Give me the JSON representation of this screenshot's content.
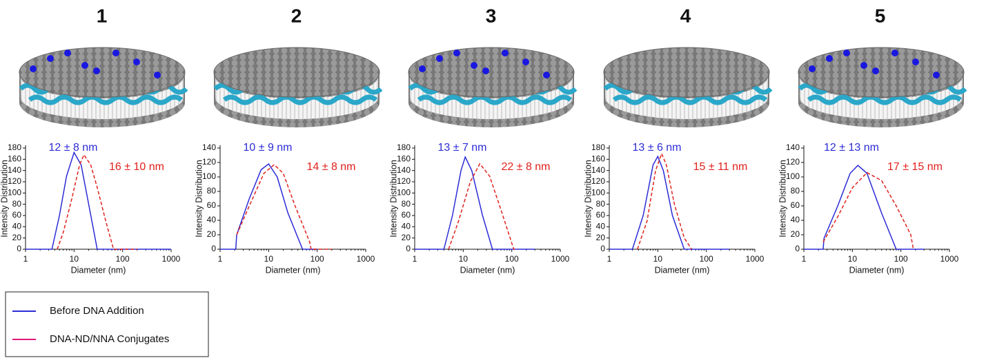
{
  "chart_data": [
    {
      "type": "line",
      "title": "1",
      "xlabel": "Diameter (nm)",
      "ylabel": "Intensity Distribution",
      "xscale": "log",
      "xlim": [
        1,
        1000
      ],
      "xticks": [
        1,
        10,
        100,
        1000
      ],
      "ylim": [
        0,
        180
      ],
      "yticks": [
        0,
        20,
        40,
        60,
        80,
        100,
        120,
        140,
        160,
        180
      ],
      "series": [
        {
          "name": "12 ± 8 nm",
          "color": "#2b2bd6",
          "dashed": false,
          "x": [
            1,
            3.5,
            5,
            7,
            10,
            14,
            20,
            30,
            1000
          ],
          "values": [
            0,
            0,
            60,
            130,
            172,
            150,
            80,
            0,
            0
          ]
        },
        {
          "name": "16 ± 10 nm",
          "color": "#e0201b",
          "dashed": true,
          "x": [
            4.5,
            6,
            9,
            13,
            16,
            22,
            30,
            45,
            65,
            200
          ],
          "values": [
            0,
            30,
            90,
            150,
            168,
            150,
            110,
            50,
            0,
            0
          ]
        }
      ]
    },
    {
      "type": "line",
      "title": "2",
      "xlabel": "Diameter (nm)",
      "ylabel": "Intensity Distribution",
      "xscale": "log",
      "xlim": [
        1,
        1000
      ],
      "xticks": [
        1,
        10,
        100,
        1000
      ],
      "ylim": [
        0,
        140
      ],
      "yticks": [
        0,
        20,
        40,
        60,
        80,
        100,
        120,
        140
      ],
      "series": [
        {
          "name": "10 ± 9 nm",
          "color": "#2b2bd6",
          "dashed": false,
          "x": [
            1,
            2.1,
            2.2,
            4,
            7,
            10,
            15,
            25,
            50,
            100
          ],
          "values": [
            0,
            0,
            20,
            70,
            110,
            118,
            100,
            50,
            0,
            0
          ]
        },
        {
          "name": "14 ± 8 nm",
          "color": "#e0201b",
          "dashed": true,
          "x": [
            2.2,
            4,
            8,
            13,
            20,
            35,
            70,
            75,
            200
          ],
          "values": [
            20,
            60,
            105,
            117,
            105,
            60,
            10,
            0,
            0
          ]
        }
      ]
    },
    {
      "type": "line",
      "title": "3",
      "xlabel": "Diameter (nm)",
      "ylabel": "Intensity Distribution",
      "xscale": "log",
      "xlim": [
        1,
        1000
      ],
      "xticks": [
        1,
        10,
        100,
        1000
      ],
      "ylim": [
        0,
        180
      ],
      "yticks": [
        0,
        20,
        40,
        60,
        80,
        100,
        120,
        140,
        160,
        180
      ],
      "series": [
        {
          "name": "13 ± 7 nm",
          "color": "#2b2bd6",
          "dashed": false,
          "x": [
            1,
            4,
            6,
            9,
            11,
            15,
            25,
            40,
            300
          ],
          "values": [
            0,
            0,
            60,
            140,
            164,
            140,
            60,
            0,
            0
          ]
        },
        {
          "name": "22 ± 8 nm",
          "color": "#e0201b",
          "dashed": true,
          "x": [
            5,
            8,
            14,
            22,
            35,
            60,
            110,
            120
          ],
          "values": [
            0,
            50,
            120,
            152,
            130,
            70,
            0,
            0
          ]
        }
      ]
    },
    {
      "type": "line",
      "title": "4",
      "xlabel": "Diameter (nm)",
      "ylabel": "Intensity Distribution",
      "xscale": "log",
      "xlim": [
        1,
        1000
      ],
      "xticks": [
        1,
        10,
        100,
        1000
      ],
      "ylim": [
        0,
        180
      ],
      "yticks": [
        0,
        20,
        40,
        60,
        80,
        100,
        120,
        140,
        160,
        180
      ],
      "series": [
        {
          "name": "13 ± 6 nm",
          "color": "#2b2bd6",
          "dashed": false,
          "x": [
            1,
            3,
            5,
            8,
            10,
            13,
            20,
            35,
            300
          ],
          "values": [
            0,
            0,
            60,
            150,
            165,
            140,
            60,
            0,
            0
          ]
        },
        {
          "name": "15 ± 11 nm",
          "color": "#e0201b",
          "dashed": true,
          "x": [
            3.8,
            6,
            9,
            12,
            15,
            22,
            35,
            50
          ],
          "values": [
            0,
            50,
            140,
            170,
            150,
            80,
            20,
            0
          ]
        }
      ]
    },
    {
      "type": "line",
      "title": "5",
      "xlabel": "Diameter (nm)",
      "ylabel": "Intensity Distribution",
      "xscale": "log",
      "xlim": [
        1,
        1000
      ],
      "xticks": [
        1,
        10,
        100,
        1000
      ],
      "ylim": [
        0,
        140
      ],
      "yticks": [
        0,
        20,
        40,
        60,
        80,
        100,
        120,
        140
      ],
      "series": [
        {
          "name": "12 ± 13 nm",
          "color": "#2b2bd6",
          "dashed": false,
          "x": [
            1,
            2.5,
            2.6,
            5,
            9,
            13,
            20,
            40,
            80,
            300
          ],
          "values": [
            0,
            0,
            15,
            60,
            105,
            116,
            105,
            50,
            0,
            0
          ]
        },
        {
          "name": "17 ± 15 nm",
          "color": "#e0201b",
          "dashed": true,
          "x": [
            2.5,
            5,
            10,
            20,
            40,
            80,
            160,
            180
          ],
          "values": [
            10,
            45,
            85,
            106,
            95,
            60,
            20,
            0
          ]
        }
      ]
    }
  ],
  "legend": {
    "entries": [
      {
        "name": "Before DNA Addition",
        "color": "#2b2bd6"
      },
      {
        "name": "DNA-ND/NNA Conjugates",
        "color": "#e0157a"
      }
    ]
  }
}
